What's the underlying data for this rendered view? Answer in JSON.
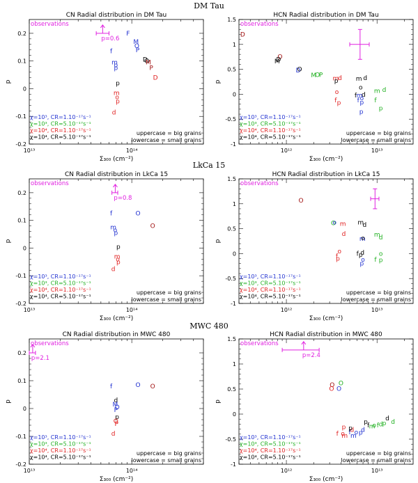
{
  "sections": [
    {
      "title": "DM Tau"
    },
    {
      "title": "LkCa 15"
    },
    {
      "title": "MWC 480"
    }
  ],
  "colors": {
    "observations": "#e020e0",
    "blue": "#2030d0",
    "green": "#20b020",
    "red": "#e02020",
    "darkred": "#a01010",
    "black": "#000000"
  },
  "common": {
    "xlabel": "Σ₃₀₀ (cm⁻²)",
    "ylabel": "p",
    "obs_label": "observations",
    "note_upper": "uppercase = big grains",
    "note_lower": "lowercase = small grains",
    "legend": [
      {
        "chi": "χ=10³",
        "cr": "CR=1.10⁻¹⁷s⁻¹",
        "color": "#2030d0"
      },
      {
        "chi": "χ=10³",
        "cr": "CR=5.10⁻¹⁷s⁻¹",
        "color": "#20b020"
      },
      {
        "chi": "χ=10⁴",
        "cr": "CR=1.10⁻¹⁷s⁻¹",
        "color": "#e02020"
      },
      {
        "chi": "χ=10⁴",
        "cr": "CR=5.10⁻¹⁷s⁻¹",
        "color": "#000000"
      }
    ]
  },
  "chart_data": [
    {
      "type": "scatter",
      "title": "CN Radial distribution in DM Tau",
      "xscale": "log",
      "xlim": [
        10000000000000.0,
        500000000000000.0
      ],
      "ylim": [
        -0.2,
        0.25
      ],
      "xticks": [
        {
          "v": 10000000000000.0,
          "label": "10¹³"
        },
        {
          "v": 100000000000000.0,
          "label": "10¹⁴"
        }
      ],
      "yticks": [
        -0.2,
        -0.1,
        0,
        0.1,
        0.2
      ],
      "obs": {
        "kind": "lower_limit",
        "x": 52000000000000.0,
        "y": 0.2,
        "xerr": [
          45000000000000.0,
          60000000000000.0
        ],
        "label": "p=0.6"
      },
      "points": [
        {
          "l": "F",
          "x": 92000000000000.0,
          "y": 0.2,
          "c": "blue"
        },
        {
          "l": "M",
          "x": 110000000000000.0,
          "y": 0.17,
          "c": "blue"
        },
        {
          "l": "O",
          "x": 112000000000000.0,
          "y": 0.155,
          "c": "blue"
        },
        {
          "l": "P",
          "x": 114000000000000.0,
          "y": 0.14,
          "c": "blue"
        },
        {
          "l": "f",
          "x": 63000000000000.0,
          "y": 0.135,
          "c": "blue"
        },
        {
          "l": "m",
          "x": 68000000000000.0,
          "y": 0.095,
          "c": "blue"
        },
        {
          "l": "o",
          "x": 70000000000000.0,
          "y": 0.085,
          "c": "blue"
        },
        {
          "l": "p",
          "x": 70000000000000.0,
          "y": 0.075,
          "c": "blue"
        },
        {
          "l": "p",
          "x": 73000000000000.0,
          "y": 0.02,
          "c": "black"
        },
        {
          "l": "m",
          "x": 71000000000000.0,
          "y": -0.015,
          "c": "red"
        },
        {
          "l": "o",
          "x": 72000000000000.0,
          "y": -0.03,
          "c": "red"
        },
        {
          "l": "p",
          "x": 73000000000000.0,
          "y": -0.045,
          "c": "red"
        },
        {
          "l": "d",
          "x": 67000000000000.0,
          "y": -0.085,
          "c": "red"
        },
        {
          "l": "D",
          "x": 135000000000000.0,
          "y": 0.105,
          "c": "black"
        },
        {
          "l": "O",
          "x": 140000000000000.0,
          "y": 0.1,
          "c": "black"
        },
        {
          "l": "M",
          "x": 145000000000000.0,
          "y": 0.095,
          "c": "darkred"
        },
        {
          "l": "P",
          "x": 155000000000000.0,
          "y": 0.075,
          "c": "darkred"
        },
        {
          "l": "D",
          "x": 170000000000000.0,
          "y": 0.04,
          "c": "red"
        }
      ]
    },
    {
      "type": "scatter",
      "title": "HCN Radial distribution in DM Tau",
      "xscale": "log",
      "xlim": [
        300000000000.0,
        25000000000000.0
      ],
      "ylim": [
        -1,
        1.5
      ],
      "xticks": [
        {
          "v": 1000000000000.0,
          "label": "10¹²"
        },
        {
          "v": 10000000000000.0,
          "label": "10¹³"
        }
      ],
      "yticks": [
        -1,
        -0.5,
        0,
        0.5,
        1,
        1.5
      ],
      "obs": {
        "kind": "cross",
        "x": 6500000000000.0,
        "y": 1.0,
        "xerr": [
          5000000000000.0,
          8200000000000.0
        ],
        "yerr": [
          0.7,
          1.3
        ]
      },
      "points": [
        {
          "l": "D",
          "x": 330000000000.0,
          "y": 1.2,
          "c": "darkred"
        },
        {
          "l": "O",
          "x": 850000000000.0,
          "y": 0.75,
          "c": "darkred"
        },
        {
          "l": "D",
          "x": 820000000000.0,
          "y": 0.7,
          "c": "black"
        },
        {
          "l": "M",
          "x": 790000000000.0,
          "y": 0.66,
          "c": "black"
        },
        {
          "l": "D",
          "x": 1350000000000.0,
          "y": 0.48,
          "c": "blue"
        },
        {
          "l": "O",
          "x": 1400000000000.0,
          "y": 0.5,
          "c": "black"
        },
        {
          "l": "M",
          "x": 2000000000000.0,
          "y": 0.38,
          "c": "green"
        },
        {
          "l": "O",
          "x": 2200000000000.0,
          "y": 0.39,
          "c": "green"
        },
        {
          "l": "P",
          "x": 2400000000000.0,
          "y": 0.39,
          "c": "green"
        },
        {
          "l": "m",
          "x": 3500000000000.0,
          "y": 0.32,
          "c": "red"
        },
        {
          "l": "d",
          "x": 3900000000000.0,
          "y": 0.33,
          "c": "red"
        },
        {
          "l": "p",
          "x": 3550000000000.0,
          "y": 0.27,
          "c": "black"
        },
        {
          "l": "o",
          "x": 3600000000000.0,
          "y": 0.05,
          "c": "red"
        },
        {
          "l": "f",
          "x": 3500000000000.0,
          "y": -0.12,
          "c": "red"
        },
        {
          "l": "p",
          "x": 3800000000000.0,
          "y": -0.17,
          "c": "red"
        },
        {
          "l": "m",
          "x": 6300000000000.0,
          "y": 0.31,
          "c": "black"
        },
        {
          "l": "d",
          "x": 7400000000000.0,
          "y": 0.33,
          "c": "black"
        },
        {
          "l": "o",
          "x": 6600000000000.0,
          "y": 0.14,
          "c": "black"
        },
        {
          "l": "f",
          "x": 5800000000000.0,
          "y": -0.02,
          "c": "black"
        },
        {
          "l": "m",
          "x": 6400000000000.0,
          "y": -0.02,
          "c": "blue"
        },
        {
          "l": "d",
          "x": 7100000000000.0,
          "y": -0.01,
          "c": "black"
        },
        {
          "l": "o",
          "x": 6800000000000.0,
          "y": -0.08,
          "c": "blue"
        },
        {
          "l": "f",
          "x": 6200000000000.0,
          "y": -0.12,
          "c": "blue"
        },
        {
          "l": "p",
          "x": 6800000000000.0,
          "y": -0.16,
          "c": "blue"
        },
        {
          "l": "p",
          "x": 6700000000000.0,
          "y": -0.35,
          "c": "blue"
        },
        {
          "l": "m",
          "x": 10000000000000.0,
          "y": 0.07,
          "c": "green"
        },
        {
          "l": "d",
          "x": 12000000000000.0,
          "y": 0.09,
          "c": "green"
        },
        {
          "l": "f",
          "x": 9600000000000.0,
          "y": -0.12,
          "c": "green"
        },
        {
          "l": "p",
          "x": 11000000000000.0,
          "y": -0.28,
          "c": "green"
        }
      ]
    },
    {
      "type": "scatter",
      "title": "CN Radial distribution in LkCa 15",
      "xscale": "log",
      "xlim": [
        10000000000000.0,
        500000000000000.0
      ],
      "ylim": [
        -0.2,
        0.25
      ],
      "xticks": [
        {
          "v": 10000000000000.0,
          "label": "10¹³"
        },
        {
          "v": 100000000000000.0,
          "label": "10¹⁴"
        }
      ],
      "yticks": [
        -0.2,
        -0.1,
        0,
        0.1,
        0.2
      ],
      "obs": {
        "kind": "lower_limit",
        "x": 69000000000000.0,
        "y": 0.2,
        "xerr": [
          64000000000000.0,
          73000000000000.0
        ],
        "label": "p=0.8"
      },
      "points": [
        {
          "l": "f",
          "x": 63000000000000.0,
          "y": 0.125,
          "c": "blue"
        },
        {
          "l": "O",
          "x": 115000000000000.0,
          "y": 0.125,
          "c": "blue"
        },
        {
          "l": "O",
          "x": 160000000000000.0,
          "y": 0.08,
          "c": "darkred"
        },
        {
          "l": "m",
          "x": 66000000000000.0,
          "y": 0.075,
          "c": "blue"
        },
        {
          "l": "o",
          "x": 69000000000000.0,
          "y": 0.065,
          "c": "blue"
        },
        {
          "l": "p",
          "x": 70000000000000.0,
          "y": 0.055,
          "c": "blue"
        },
        {
          "l": "p",
          "x": 74000000000000.0,
          "y": 0.005,
          "c": "black"
        },
        {
          "l": "m",
          "x": 72000000000000.0,
          "y": -0.03,
          "c": "red"
        },
        {
          "l": "o",
          "x": 73000000000000.0,
          "y": -0.04,
          "c": "red"
        },
        {
          "l": "p",
          "x": 74000000000000.0,
          "y": -0.05,
          "c": "red"
        },
        {
          "l": "d",
          "x": 66000000000000.0,
          "y": -0.075,
          "c": "red"
        }
      ]
    },
    {
      "type": "scatter",
      "title": "HCN Radial distribution in LkCa 15",
      "xscale": "log",
      "xlim": [
        300000000000.0,
        25000000000000.0
      ],
      "ylim": [
        -1,
        1.5
      ],
      "xticks": [
        {
          "v": 1000000000000.0,
          "label": "10¹²"
        },
        {
          "v": 10000000000000.0,
          "label": "10¹³"
        }
      ],
      "yticks": [
        -1,
        -0.5,
        0,
        0.5,
        1,
        1.5
      ],
      "obs": {
        "kind": "cross",
        "x": 9500000000000.0,
        "y": 1.1,
        "xerr": [
          8500000000000.0,
          10500000000000.0
        ],
        "yerr": [
          0.9,
          1.3
        ]
      },
      "points": [
        {
          "l": "O",
          "x": 1450000000000.0,
          "y": 1.07,
          "c": "darkred"
        },
        {
          "l": "O",
          "x": 3300000000000.0,
          "y": 0.61,
          "c": "green"
        },
        {
          "l": "o",
          "x": 3400000000000.0,
          "y": 0.63,
          "c": "blue"
        },
        {
          "l": "m",
          "x": 4200000000000.0,
          "y": 0.6,
          "c": "red"
        },
        {
          "l": "d",
          "x": 4300000000000.0,
          "y": 0.4,
          "c": "red"
        },
        {
          "l": "o",
          "x": 3850000000000.0,
          "y": 0.05,
          "c": "red"
        },
        {
          "l": "f",
          "x": 3600000000000.0,
          "y": -0.05,
          "c": "red"
        },
        {
          "l": "p",
          "x": 3700000000000.0,
          "y": -0.1,
          "c": "red"
        },
        {
          "l": "m",
          "x": 6600000000000.0,
          "y": 0.63,
          "c": "black"
        },
        {
          "l": "d",
          "x": 7300000000000.0,
          "y": 0.58,
          "c": "black"
        },
        {
          "l": "m",
          "x": 6900000000000.0,
          "y": 0.3,
          "c": "blue"
        },
        {
          "l": "o",
          "x": 7000000000000.0,
          "y": 0.31,
          "c": "black"
        },
        {
          "l": "f",
          "x": 6100000000000.0,
          "y": 0,
          "c": "black"
        },
        {
          "l": "p",
          "x": 6600000000000.0,
          "y": -0.02,
          "c": "black"
        },
        {
          "l": "d",
          "x": 6900000000000.0,
          "y": 0.02,
          "c": "black"
        },
        {
          "l": "o",
          "x": 7000000000000.0,
          "y": -0.12,
          "c": "blue"
        },
        {
          "l": "p",
          "x": 6800000000000.0,
          "y": -0.2,
          "c": "blue"
        },
        {
          "l": "m",
          "x": 10000000000000.0,
          "y": 0.38,
          "c": "green"
        },
        {
          "l": "d",
          "x": 11000000000000.0,
          "y": 0.33,
          "c": "green"
        },
        {
          "l": "o",
          "x": 11000000000000.0,
          "y": 0,
          "c": "green"
        },
        {
          "l": "f",
          "x": 9600000000000.0,
          "y": -0.12,
          "c": "green"
        },
        {
          "l": "p",
          "x": 11000000000000.0,
          "y": -0.13,
          "c": "green"
        }
      ]
    },
    {
      "type": "scatter",
      "title": "CN Radial distribution in MWC 480",
      "xscale": "log",
      "xlim": [
        10000000000000.0,
        500000000000000.0
      ],
      "ylim": [
        -0.2,
        0.25
      ],
      "xticks": [
        {
          "v": 10000000000000.0,
          "label": "10¹³"
        },
        {
          "v": 100000000000000.0,
          "label": "10¹⁴"
        }
      ],
      "yticks": [
        -0.2,
        -0.1,
        0,
        0.1,
        0.2
      ],
      "obs": {
        "kind": "lower_limit",
        "x": 10800000000000.0,
        "y": 0.2,
        "xerr": [
          10000000000000.0,
          11500000000000.0
        ],
        "label": "p=2.1"
      },
      "points": [
        {
          "l": "f",
          "x": 63000000000000.0,
          "y": 0.08,
          "c": "blue"
        },
        {
          "l": "O",
          "x": 115000000000000.0,
          "y": 0.085,
          "c": "blue"
        },
        {
          "l": "O",
          "x": 160000000000000.0,
          "y": 0.08,
          "c": "darkred"
        },
        {
          "l": "d",
          "x": 70000000000000.0,
          "y": 0.03,
          "c": "black"
        },
        {
          "l": "M",
          "x": 69000000000000.0,
          "y": 0.015,
          "c": "blue"
        },
        {
          "l": "O",
          "x": 72000000000000.0,
          "y": 0.005,
          "c": "blue"
        },
        {
          "l": "P",
          "x": 70000000000000.0,
          "y": -0.005,
          "c": "blue"
        },
        {
          "l": "p",
          "x": 72000000000000.0,
          "y": -0.03,
          "c": "black"
        },
        {
          "l": "O",
          "x": 70000000000000.0,
          "y": -0.045,
          "c": "red"
        },
        {
          "l": "P",
          "x": 71000000000000.0,
          "y": -0.055,
          "c": "red"
        },
        {
          "l": "d",
          "x": 66000000000000.0,
          "y": -0.09,
          "c": "red"
        }
      ]
    },
    {
      "type": "scatter",
      "title": "HCN Radial distribution in MWC 480",
      "xscale": "log",
      "xlim": [
        300000000000.0,
        25000000000000.0
      ],
      "ylim": [
        -1,
        1.5
      ],
      "xticks": [
        {
          "v": 1000000000000.0,
          "label": "10¹²"
        },
        {
          "v": 10000000000000.0,
          "label": "10¹³"
        }
      ],
      "yticks": [
        -1,
        -0.5,
        0,
        0.5,
        1,
        1.5
      ],
      "obs": {
        "kind": "lower_limit",
        "x": 1550000000000.0,
        "y": 1.28,
        "xerr": [
          900000000000.0,
          2300000000000.0
        ],
        "label": "p=2.4"
      },
      "points": [
        {
          "l": "O",
          "x": 3200000000000.0,
          "y": 0.58,
          "c": "darkred"
        },
        {
          "l": "O",
          "x": 4000000000000.0,
          "y": 0.62,
          "c": "green"
        },
        {
          "l": "O",
          "x": 3800000000000.0,
          "y": 0.51,
          "c": "blue"
        },
        {
          "l": "O",
          "x": 3150000000000.0,
          "y": 0.51,
          "c": "red"
        },
        {
          "l": "f",
          "x": 3650000000000.0,
          "y": -0.39,
          "c": "red"
        },
        {
          "l": "p",
          "x": 4300000000000.0,
          "y": -0.26,
          "c": "red"
        },
        {
          "l": "m",
          "x": 4400000000000.0,
          "y": -0.43,
          "c": "red"
        },
        {
          "l": "o",
          "x": 4200000000000.0,
          "y": -0.39,
          "c": "red"
        },
        {
          "l": "f",
          "x": 5000000000000.0,
          "y": -0.36,
          "c": "blue"
        },
        {
          "l": "d",
          "x": 5300000000000.0,
          "y": -0.31,
          "c": "red"
        },
        {
          "l": "o",
          "x": 5900000000000.0,
          "y": -0.36,
          "c": "blue"
        },
        {
          "l": "m",
          "x": 5500000000000.0,
          "y": -0.43,
          "c": "blue"
        },
        {
          "l": "p",
          "x": 5100000000000.0,
          "y": -0.28,
          "c": "black"
        },
        {
          "l": "d",
          "x": 7000000000000.0,
          "y": -0.31,
          "c": "blue"
        },
        {
          "l": "p",
          "x": 6600000000000.0,
          "y": -0.37,
          "c": "blue"
        },
        {
          "l": "p",
          "x": 7500000000000.0,
          "y": -0.15,
          "c": "black"
        },
        {
          "l": "f",
          "x": 8000000000000.0,
          "y": -0.22,
          "c": "black"
        },
        {
          "l": "m",
          "x": 8800000000000.0,
          "y": -0.24,
          "c": "green"
        },
        {
          "l": "o",
          "x": 9300000000000.0,
          "y": -0.22,
          "c": "green"
        },
        {
          "l": "f",
          "x": 10200000000000.0,
          "y": -0.22,
          "c": "green"
        },
        {
          "l": "d",
          "x": 11000000000000.0,
          "y": -0.2,
          "c": "green"
        },
        {
          "l": "p",
          "x": 12000000000000.0,
          "y": -0.18,
          "c": "green"
        },
        {
          "l": "d",
          "x": 13000000000000.0,
          "y": -0.08,
          "c": "black"
        },
        {
          "l": "d",
          "x": 15000000000000.0,
          "y": -0.15,
          "c": "green"
        }
      ]
    }
  ]
}
